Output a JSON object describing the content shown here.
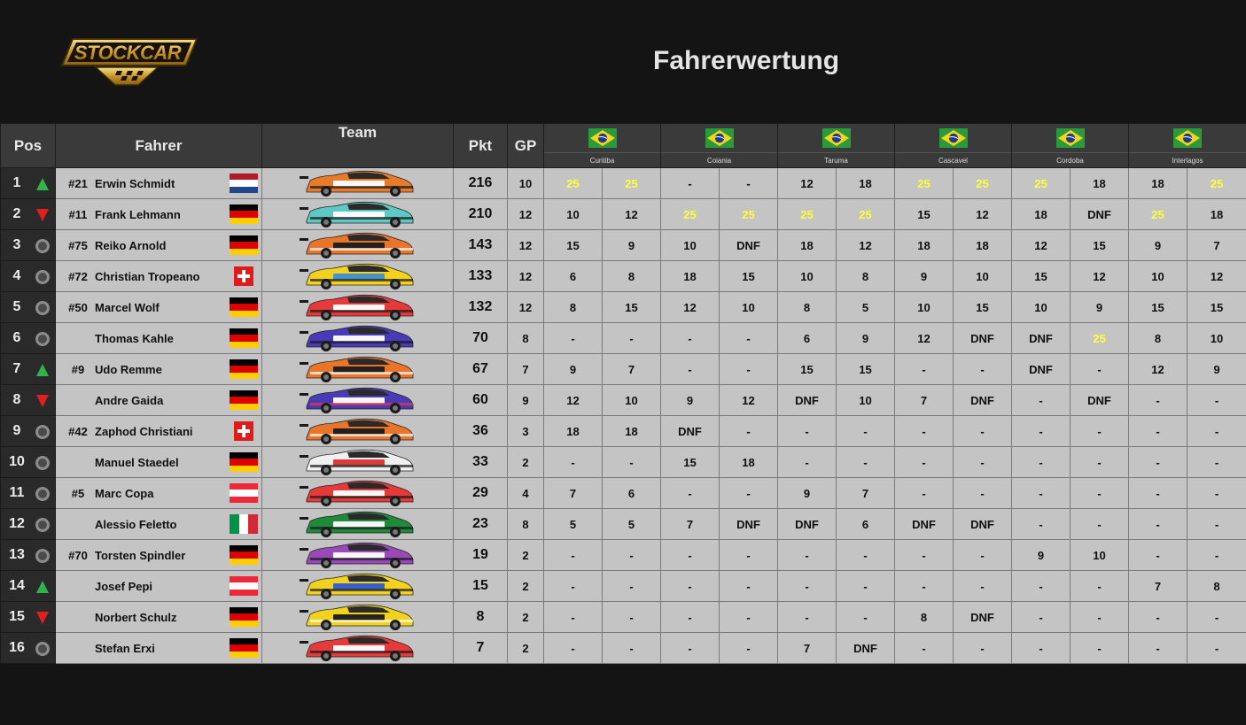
{
  "header": {
    "title": "Fahrerwertung",
    "logo_text": "STOCKCAR"
  },
  "columns": {
    "pos": "Pos",
    "driver": "Fahrer",
    "team": "Team",
    "points": "Pkt",
    "gp": "GP"
  },
  "races": [
    {
      "city": "Curitiba",
      "flag": "brazil-flag-icon"
    },
    {
      "city": "Coiania",
      "flag": "brazil-flag-icon"
    },
    {
      "city": "Taruma",
      "flag": "brazil-flag-icon"
    },
    {
      "city": "Cascavel",
      "flag": "brazil-flag-icon"
    },
    {
      "city": "Cordoba",
      "flag": "brazil-flag-icon"
    },
    {
      "city": "Interlagos",
      "flag": "brazil-flag-icon"
    }
  ],
  "colors": {
    "winner_highlight": "#ffff3c",
    "up": "#2fb34a",
    "down": "#e21f1f"
  },
  "rows": [
    {
      "pos": "1",
      "trend": "up",
      "number": "#21",
      "name": "Erwin Schmidt",
      "nation": "nl",
      "car": [
        "#e87b2a",
        "#ffffff",
        "#1a1a1a"
      ],
      "points": "216",
      "gp": "10",
      "results": [
        "25",
        "25",
        "-",
        "-",
        "12",
        "18",
        "25",
        "25",
        "25",
        "18",
        "18",
        "25"
      ]
    },
    {
      "pos": "2",
      "trend": "down",
      "number": "#11",
      "name": "Frank Lehmann",
      "nation": "de",
      "car": [
        "#5ec8c4",
        "#ffffff",
        "#1a1a1a"
      ],
      "points": "210",
      "gp": "12",
      "results": [
        "10",
        "12",
        "25",
        "25",
        "25",
        "25",
        "15",
        "12",
        "18",
        "DNF",
        "25",
        "18"
      ]
    },
    {
      "pos": "3",
      "trend": "same",
      "number": "#75",
      "name": "Reiko Arnold",
      "nation": "de",
      "car": [
        "#e8752a",
        "#1a1a1a",
        "#ffffff"
      ],
      "points": "143",
      "gp": "12",
      "results": [
        "15",
        "9",
        "10",
        "DNF",
        "18",
        "12",
        "18",
        "18",
        "12",
        "15",
        "9",
        "7"
      ]
    },
    {
      "pos": "4",
      "trend": "same",
      "number": "#72",
      "name": "Christian Tropeano",
      "nation": "ch",
      "car": [
        "#f2d21c",
        "#3a8fd8",
        "#1a1a1a"
      ],
      "points": "133",
      "gp": "12",
      "results": [
        "6",
        "8",
        "18",
        "15",
        "10",
        "8",
        "9",
        "10",
        "15",
        "12",
        "10",
        "12"
      ]
    },
    {
      "pos": "5",
      "trend": "same",
      "number": "#50",
      "name": "Marcel Wolf",
      "nation": "de",
      "car": [
        "#e63a3a",
        "#ffffff",
        "#1a1a1a"
      ],
      "points": "132",
      "gp": "12",
      "results": [
        "8",
        "15",
        "12",
        "10",
        "8",
        "5",
        "10",
        "15",
        "10",
        "9",
        "15",
        "15"
      ]
    },
    {
      "pos": "6",
      "trend": "same",
      "number": "",
      "name": "Thomas Kahle",
      "nation": "de",
      "car": [
        "#4a3ab8",
        "#ffffff",
        "#1a1a1a"
      ],
      "points": "70",
      "gp": "8",
      "results": [
        "-",
        "-",
        "-",
        "-",
        "6",
        "9",
        "12",
        "DNF",
        "DNF",
        "25",
        "8",
        "10"
      ]
    },
    {
      "pos": "7",
      "trend": "up",
      "number": "#9",
      "name": "Udo Remme",
      "nation": "de",
      "car": [
        "#e8752a",
        "#1a1a1a",
        "#ffffff"
      ],
      "points": "67",
      "gp": "7",
      "results": [
        "9",
        "7",
        "-",
        "-",
        "15",
        "15",
        "-",
        "-",
        "DNF",
        "-",
        "12",
        "9"
      ]
    },
    {
      "pos": "8",
      "trend": "down",
      "number": "",
      "name": "Andre Gaida",
      "nation": "de",
      "car": [
        "#4a3ab8",
        "#ffffff",
        "#e63a3a"
      ],
      "points": "60",
      "gp": "9",
      "results": [
        "12",
        "10",
        "9",
        "12",
        "DNF",
        "10",
        "7",
        "DNF",
        "-",
        "DNF",
        "-",
        "-"
      ]
    },
    {
      "pos": "9",
      "trend": "same",
      "number": "#42",
      "name": "Zaphod Christiani",
      "nation": "ch",
      "car": [
        "#e8752a",
        "#1a1a1a",
        "#ffffff"
      ],
      "points": "36",
      "gp": "3",
      "results": [
        "18",
        "18",
        "DNF",
        "-",
        "-",
        "-",
        "-",
        "-",
        "-",
        "-",
        "-",
        "-"
      ]
    },
    {
      "pos": "10",
      "trend": "same",
      "number": "",
      "name": "Manuel Staedel",
      "nation": "de",
      "car": [
        "#f0f0f0",
        "#d83030",
        "#1a1a1a"
      ],
      "points": "33",
      "gp": "2",
      "results": [
        "-",
        "-",
        "15",
        "18",
        "-",
        "-",
        "-",
        "-",
        "-",
        "-",
        "-",
        "-"
      ]
    },
    {
      "pos": "11",
      "trend": "same",
      "number": "#5",
      "name": "Marc Copa",
      "nation": "at",
      "car": [
        "#e63a3a",
        "#ffffff",
        "#1a1a1a"
      ],
      "points": "29",
      "gp": "4",
      "results": [
        "7",
        "6",
        "-",
        "-",
        "9",
        "7",
        "-",
        "-",
        "-",
        "-",
        "-",
        "-"
      ]
    },
    {
      "pos": "12",
      "trend": "same",
      "number": "",
      "name": "Alessio Feletto",
      "nation": "it",
      "car": [
        "#1f8a3a",
        "#ffffff",
        "#1a1a1a"
      ],
      "points": "23",
      "gp": "8",
      "results": [
        "5",
        "5",
        "7",
        "DNF",
        "DNF",
        "6",
        "DNF",
        "DNF",
        "-",
        "-",
        "-",
        "-"
      ]
    },
    {
      "pos": "13",
      "trend": "same",
      "number": "#70",
      "name": "Torsten Spindler",
      "nation": "de",
      "car": [
        "#9a4ab8",
        "#ffffff",
        "#1a1a1a"
      ],
      "points": "19",
      "gp": "2",
      "results": [
        "-",
        "-",
        "-",
        "-",
        "-",
        "-",
        "-",
        "-",
        "9",
        "10",
        "-",
        "-"
      ]
    },
    {
      "pos": "14",
      "trend": "up",
      "number": "",
      "name": "Josef Pepi",
      "nation": "at",
      "car": [
        "#f2d21c",
        "#2a5ad8",
        "#1a1a1a"
      ],
      "points": "15",
      "gp": "2",
      "results": [
        "-",
        "-",
        "-",
        "-",
        "-",
        "-",
        "-",
        "-",
        "-",
        "-",
        "7",
        "8"
      ]
    },
    {
      "pos": "15",
      "trend": "down",
      "number": "",
      "name": "Norbert Schulz",
      "nation": "de",
      "car": [
        "#f2d21c",
        "#1a1a1a",
        "#ffffff"
      ],
      "points": "8",
      "gp": "2",
      "results": [
        "-",
        "-",
        "-",
        "-",
        "-",
        "-",
        "8",
        "DNF",
        "-",
        "-",
        "-",
        "-"
      ]
    },
    {
      "pos": "16",
      "trend": "same",
      "number": "",
      "name": "Stefan Erxi",
      "nation": "de",
      "car": [
        "#e63a3a",
        "#ffffff",
        "#1a1a1a"
      ],
      "points": "7",
      "gp": "2",
      "results": [
        "-",
        "-",
        "-",
        "-",
        "7",
        "DNF",
        "-",
        "-",
        "-",
        "-",
        "-",
        "-"
      ]
    }
  ]
}
